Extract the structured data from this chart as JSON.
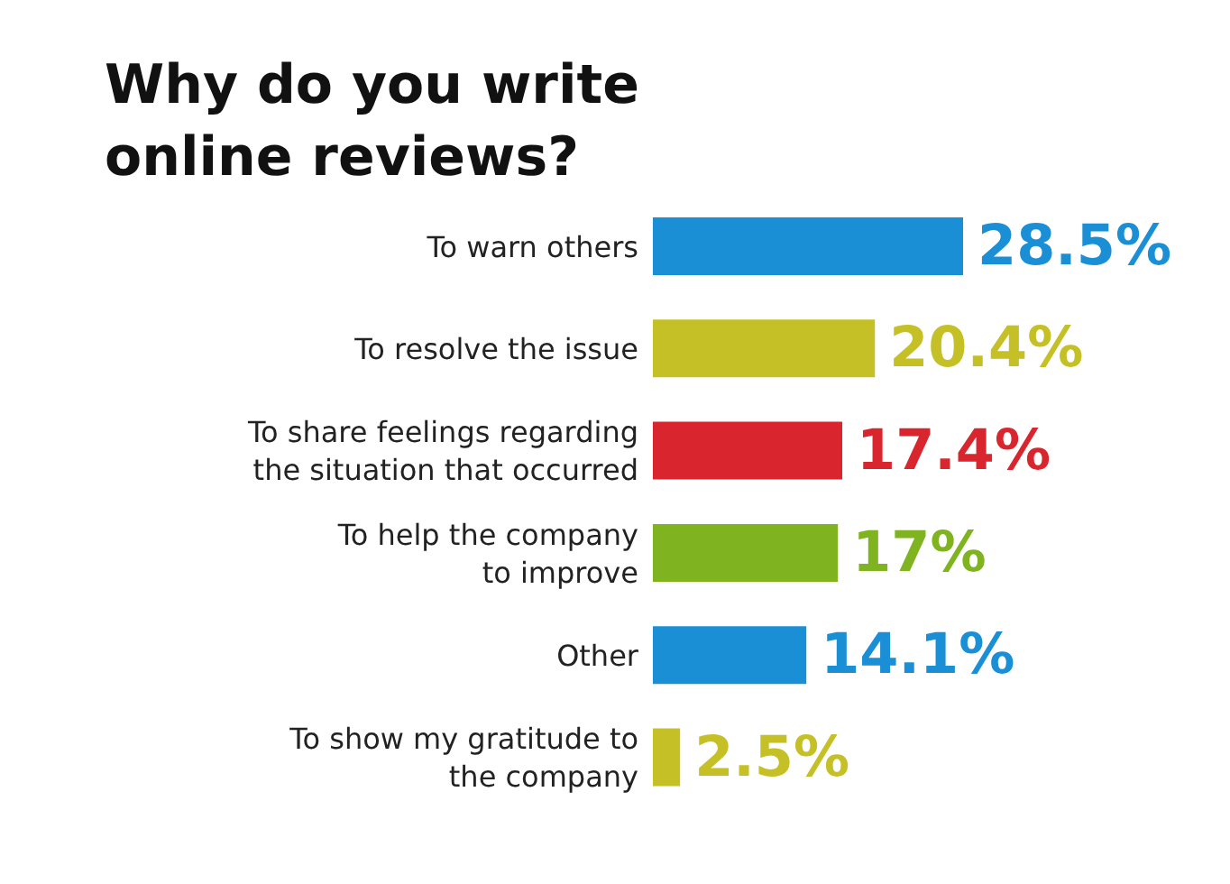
{
  "chart_data": {
    "type": "bar",
    "orientation": "horizontal",
    "title": "Why do you write\nonline reviews?",
    "categories": [
      "To warn others",
      "To resolve the issue",
      "To share feelings regarding\nthe situation that occurred",
      "To help the company\nto improve",
      "Other",
      "To show my gratitude to\nthe company"
    ],
    "values": [
      28.5,
      20.4,
      17.4,
      17,
      14.1,
      2.5
    ],
    "value_labels": [
      "28.5%",
      "20.4%",
      "17.4%",
      "17%",
      "14.1%",
      "2.5%"
    ],
    "colors": [
      "#1a8fd6",
      "#c5c026",
      "#d9262e",
      "#7fb420",
      "#1a8fd6",
      "#c5c026"
    ]
  }
}
